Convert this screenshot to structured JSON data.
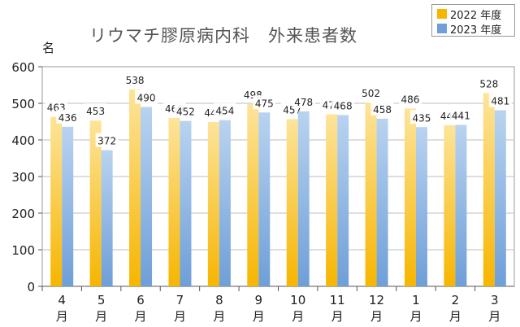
{
  "chart_data": {
    "type": "bar",
    "title": "リウマチ膠原病内科　外来患者数",
    "ylabel": "名",
    "xlabel": "",
    "ylim": [
      0,
      600
    ],
    "yticks": [
      0,
      100,
      200,
      300,
      400,
      500,
      600
    ],
    "grid": true,
    "legend_position": "top-right",
    "categories": [
      {
        "num": "4",
        "unit": "月"
      },
      {
        "num": "5",
        "unit": "月"
      },
      {
        "num": "6",
        "unit": "月"
      },
      {
        "num": "7",
        "unit": "月"
      },
      {
        "num": "8",
        "unit": "月"
      },
      {
        "num": "9",
        "unit": "月"
      },
      {
        "num": "10",
        "unit": "月"
      },
      {
        "num": "11",
        "unit": "月"
      },
      {
        "num": "12",
        "unit": "月"
      },
      {
        "num": "1",
        "unit": "月"
      },
      {
        "num": "2",
        "unit": "月"
      },
      {
        "num": "3",
        "unit": "月"
      }
    ],
    "series": [
      {
        "name": "2022 年度",
        "color": "#f7b500",
        "color_light": "#fde49a",
        "values": [
          463,
          453,
          538,
          460,
          449,
          498,
          457,
          470,
          502,
          486,
          440,
          528
        ]
      },
      {
        "name": "2023 年度",
        "color": "#6e9fd8",
        "color_light": "#b9d3f0",
        "values": [
          436,
          372,
          490,
          452,
          454,
          475,
          478,
          468,
          458,
          435,
          441,
          481
        ]
      }
    ]
  }
}
